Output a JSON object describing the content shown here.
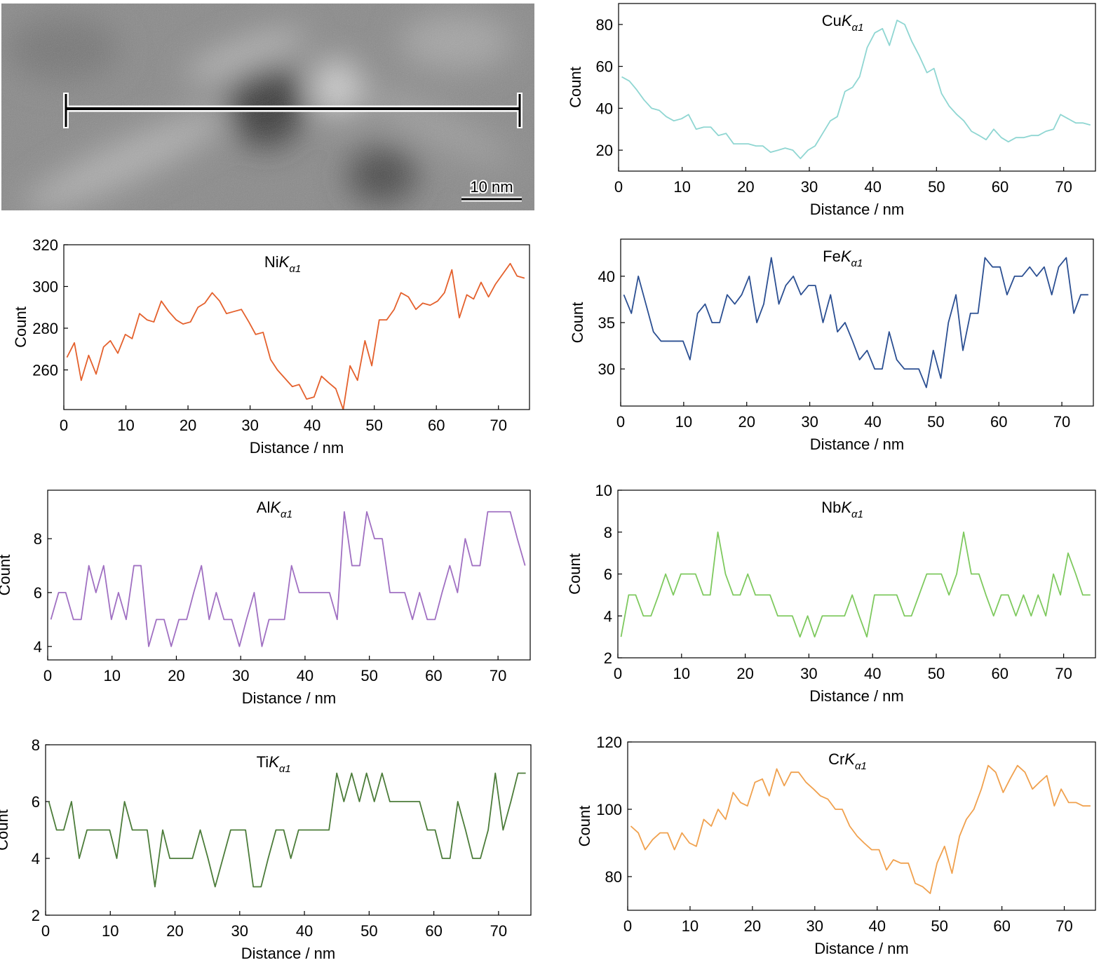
{
  "image": {
    "scale_bar": "10 nm"
  },
  "chart_data": [
    {
      "type": "line",
      "title": "CuKα1",
      "xlabel": "Distance / nm",
      "ylabel": "Count",
      "x": [
        0.5,
        1.7,
        2.8,
        4.0,
        5.2,
        6.4,
        7.5,
        8.7,
        9.9,
        11.0,
        12.2,
        13.4,
        14.5,
        15.7,
        16.9,
        18.1,
        19.2,
        20.4,
        21.6,
        22.7,
        23.9,
        25.1,
        26.2,
        27.4,
        28.6,
        29.8,
        30.9,
        32.1,
        33.3,
        34.4,
        35.6,
        36.8,
        37.9,
        39.1,
        40.3,
        41.5,
        42.6,
        43.8,
        45.0,
        46.1,
        47.3,
        48.5,
        49.6,
        50.8,
        52.0,
        53.2,
        54.3,
        55.5,
        56.7,
        57.8,
        59.0,
        60.2,
        61.3,
        62.5,
        63.7,
        64.9,
        66.0,
        67.2,
        68.4,
        69.5,
        70.7,
        71.9,
        73.0,
        74.2
      ],
      "values": [
        55,
        53,
        49,
        44,
        40,
        39,
        36,
        34,
        35,
        37,
        30,
        31,
        31,
        27,
        28,
        23,
        23,
        23,
        22,
        22,
        19,
        20,
        21,
        20,
        16,
        20,
        22,
        28,
        34,
        36,
        48,
        50,
        55,
        69,
        76,
        78,
        70,
        82,
        80,
        72,
        65,
        57,
        59,
        47,
        41,
        37,
        34,
        29,
        27,
        25,
        30,
        26,
        24,
        26,
        26,
        27,
        27,
        29,
        30,
        37,
        35,
        33,
        33,
        32
      ],
      "color": "#8fd6d2",
      "xlim": [
        0,
        75
      ],
      "ylim": [
        10,
        90
      ],
      "xticks": [
        0,
        10,
        20,
        30,
        40,
        50,
        60,
        70
      ],
      "yticks": [
        20,
        40,
        60,
        80
      ]
    },
    {
      "type": "line",
      "title": "NiKα1",
      "xlabel": "Distance / nm",
      "ylabel": "Count",
      "x": [
        0.5,
        1.7,
        2.8,
        4.0,
        5.2,
        6.4,
        7.5,
        8.7,
        9.9,
        11.0,
        12.2,
        13.4,
        14.5,
        15.7,
        16.9,
        18.1,
        19.2,
        20.4,
        21.6,
        22.7,
        23.9,
        25.1,
        26.2,
        27.4,
        28.6,
        29.8,
        30.9,
        32.1,
        33.3,
        34.4,
        35.6,
        36.8,
        37.9,
        39.1,
        40.3,
        41.5,
        42.6,
        43.8,
        45.0,
        46.1,
        47.3,
        48.5,
        49.6,
        50.8,
        52.0,
        53.2,
        54.3,
        55.5,
        56.7,
        57.8,
        59.0,
        60.2,
        61.3,
        62.5,
        63.7,
        64.9,
        66.0,
        67.2,
        68.4,
        69.5,
        70.7,
        71.9,
        73.0,
        74.2
      ],
      "values": [
        266,
        273,
        255,
        267,
        258,
        271,
        274,
        268,
        277,
        275,
        287,
        284,
        283,
        293,
        288,
        284,
        282,
        283,
        290,
        292,
        297,
        293,
        287,
        288,
        289,
        283,
        277,
        278,
        265,
        260,
        256,
        252,
        253,
        246,
        247,
        257,
        254,
        251,
        241,
        262,
        255,
        274,
        262,
        284,
        284,
        289,
        297,
        295,
        289,
        292,
        291,
        293,
        297,
        308,
        285,
        296,
        294,
        302,
        295,
        301,
        306,
        311,
        305,
        304
      ],
      "color": "#e4602c",
      "xlim": [
        0,
        75
      ],
      "ylim": [
        241,
        320
      ],
      "xticks": [
        0,
        10,
        20,
        30,
        40,
        50,
        60,
        70
      ],
      "yticks": [
        260,
        280,
        300,
        320
      ]
    },
    {
      "type": "line",
      "title": "FeKα1",
      "xlabel": "Distance / nm",
      "ylabel": "Count",
      "x": [
        0.5,
        1.7,
        2.8,
        4.0,
        5.2,
        6.4,
        7.5,
        8.7,
        9.9,
        11.0,
        12.2,
        13.4,
        14.5,
        15.7,
        16.9,
        18.1,
        19.2,
        20.4,
        21.6,
        22.7,
        23.9,
        25.1,
        26.2,
        27.4,
        28.6,
        29.8,
        30.9,
        32.1,
        33.3,
        34.4,
        35.6,
        36.8,
        37.9,
        39.1,
        40.3,
        41.5,
        42.6,
        43.8,
        45.0,
        46.1,
        47.3,
        48.5,
        49.6,
        50.8,
        52.0,
        53.2,
        54.3,
        55.5,
        56.7,
        57.8,
        59.0,
        60.2,
        61.3,
        62.5,
        63.7,
        64.9,
        66.0,
        67.2,
        68.4,
        69.5,
        70.7,
        71.9,
        73.0,
        74.2
      ],
      "values": [
        38,
        36,
        40,
        37,
        34,
        33,
        33,
        33,
        33,
        31,
        36,
        37,
        35,
        35,
        38,
        37,
        38,
        40,
        35,
        37,
        42,
        37,
        39,
        40,
        38,
        39,
        39,
        35,
        38,
        34,
        35,
        33,
        31,
        32,
        30,
        30,
        34,
        31,
        30,
        30,
        30,
        28,
        32,
        29,
        35,
        38,
        32,
        36,
        36,
        42,
        41,
        41,
        38,
        40,
        40,
        41,
        40,
        41,
        38,
        41,
        42,
        36,
        38,
        38
      ],
      "color": "#2b4f92",
      "xlim": [
        0,
        75
      ],
      "ylim": [
        26,
        44
      ],
      "xticks": [
        0,
        10,
        20,
        30,
        40,
        50,
        60,
        70
      ],
      "yticks": [
        30,
        35,
        40
      ]
    },
    {
      "type": "line",
      "title": "AlKα1",
      "xlabel": "Distance / nm",
      "ylabel": "Count",
      "x": [
        0.5,
        1.7,
        2.8,
        4.0,
        5.2,
        6.4,
        7.5,
        8.7,
        9.9,
        11.0,
        12.2,
        13.4,
        14.5,
        15.7,
        16.9,
        18.1,
        19.2,
        20.4,
        21.6,
        22.7,
        23.9,
        25.1,
        26.2,
        27.4,
        28.6,
        29.8,
        30.9,
        32.1,
        33.3,
        34.4,
        35.6,
        36.8,
        37.9,
        39.1,
        40.3,
        41.5,
        42.6,
        43.8,
        45.0,
        46.1,
        47.3,
        48.5,
        49.6,
        50.8,
        52.0,
        53.2,
        54.3,
        55.5,
        56.7,
        57.8,
        59.0,
        60.2,
        61.3,
        62.5,
        63.7,
        64.9,
        66.0,
        67.2,
        68.4,
        69.5,
        70.7,
        71.9,
        73.0,
        74.2
      ],
      "values": [
        5,
        6,
        6,
        5,
        5,
        7,
        6,
        7,
        5,
        6,
        5,
        7,
        7,
        4,
        5,
        5,
        4,
        5,
        5,
        6,
        7,
        5,
        6,
        5,
        5,
        4,
        5,
        6,
        4,
        5,
        5,
        5,
        7,
        6,
        6,
        6,
        6,
        6,
        5,
        9,
        7,
        7,
        9,
        8,
        8,
        6,
        6,
        6,
        5,
        6,
        5,
        5,
        6,
        7,
        6,
        8,
        7,
        7,
        9,
        9,
        9,
        9,
        8,
        7
      ],
      "color": "#a070c2",
      "xlim": [
        0,
        75
      ],
      "ylim": [
        3.5,
        9.8
      ],
      "xticks": [
        0,
        10,
        20,
        30,
        40,
        50,
        60,
        70
      ],
      "yticks": [
        4,
        6,
        8
      ]
    },
    {
      "type": "line",
      "title": "NbKα1",
      "xlabel": "Distance / nm",
      "ylabel": "Count",
      "x": [
        0.5,
        1.7,
        2.8,
        4.0,
        5.2,
        6.4,
        7.5,
        8.7,
        9.9,
        11.0,
        12.2,
        13.4,
        14.5,
        15.7,
        16.9,
        18.1,
        19.2,
        20.4,
        21.6,
        22.7,
        23.9,
        25.1,
        26.2,
        27.4,
        28.6,
        29.8,
        30.9,
        32.1,
        33.3,
        34.4,
        35.6,
        36.8,
        37.9,
        39.1,
        40.3,
        41.5,
        42.6,
        43.8,
        45.0,
        46.1,
        47.3,
        48.5,
        49.6,
        50.8,
        52.0,
        53.2,
        54.3,
        55.5,
        56.7,
        57.8,
        59.0,
        60.2,
        61.3,
        62.5,
        63.7,
        64.9,
        66.0,
        67.2,
        68.4,
        69.5,
        70.7,
        71.9,
        73.0,
        74.2
      ],
      "values": [
        3,
        5,
        5,
        4,
        4,
        5,
        6,
        5,
        6,
        6,
        6,
        5,
        5,
        8,
        6,
        5,
        5,
        6,
        5,
        5,
        5,
        4,
        4,
        4,
        3,
        4,
        3,
        4,
        4,
        4,
        4,
        5,
        4,
        3,
        5,
        5,
        5,
        5,
        4,
        4,
        5,
        6,
        6,
        6,
        5,
        6,
        8,
        6,
        6,
        5,
        4,
        5,
        5,
        4,
        5,
        4,
        5,
        4,
        6,
        5,
        7,
        6,
        5,
        5
      ],
      "color": "#7ec95e",
      "xlim": [
        0,
        75
      ],
      "ylim": [
        2,
        10
      ],
      "xticks": [
        0,
        10,
        20,
        30,
        40,
        50,
        60,
        70
      ],
      "yticks": [
        2,
        4,
        6,
        8,
        10
      ]
    },
    {
      "type": "line",
      "title": "TiKα1",
      "xlabel": "Distance / nm",
      "ylabel": "Count",
      "x": [
        0.5,
        1.7,
        2.8,
        4.0,
        5.2,
        6.4,
        7.5,
        8.7,
        9.9,
        11.0,
        12.2,
        13.4,
        14.5,
        15.7,
        16.9,
        18.1,
        19.2,
        20.4,
        21.6,
        22.7,
        23.9,
        25.1,
        26.2,
        27.4,
        28.6,
        29.8,
        30.9,
        32.1,
        33.3,
        34.4,
        35.6,
        36.8,
        37.9,
        39.1,
        40.3,
        41.5,
        42.6,
        43.8,
        45.0,
        46.1,
        47.3,
        48.5,
        49.6,
        50.8,
        52.0,
        53.2,
        54.3,
        55.5,
        56.7,
        57.8,
        59.0,
        60.2,
        61.3,
        62.5,
        63.7,
        64.9,
        66.0,
        67.2,
        68.4,
        69.5,
        70.7,
        71.9,
        73.0,
        74.2
      ],
      "values": [
        6,
        5,
        5,
        6,
        4,
        5,
        5,
        5,
        5,
        4,
        6,
        5,
        5,
        5,
        3,
        5,
        4,
        4,
        4,
        4,
        5,
        4,
        3,
        4,
        5,
        5,
        5,
        3,
        3,
        4,
        5,
        5,
        4,
        5,
        5,
        5,
        5,
        5,
        7,
        6,
        7,
        6,
        7,
        6,
        7,
        6,
        6,
        6,
        6,
        6,
        5,
        5,
        4,
        4,
        6,
        5,
        4,
        4,
        5,
        7,
        5,
        6,
        7,
        7
      ],
      "color": "#4c7c3a",
      "xlim": [
        0,
        75
      ],
      "ylim": [
        2,
        8
      ],
      "xticks": [
        0,
        10,
        20,
        30,
        40,
        50,
        60,
        70
      ],
      "yticks": [
        2,
        4,
        6,
        8
      ]
    },
    {
      "type": "line",
      "title": "CrKα1",
      "xlabel": "Distance / nm",
      "ylabel": "Count",
      "x": [
        0.5,
        1.7,
        2.8,
        4.0,
        5.2,
        6.4,
        7.5,
        8.7,
        9.9,
        11.0,
        12.2,
        13.4,
        14.5,
        15.7,
        16.9,
        18.1,
        19.2,
        20.4,
        21.6,
        22.7,
        23.9,
        25.1,
        26.2,
        27.4,
        28.6,
        29.8,
        30.9,
        32.1,
        33.3,
        34.4,
        35.6,
        36.8,
        37.9,
        39.1,
        40.3,
        41.5,
        42.6,
        43.8,
        45.0,
        46.1,
        47.3,
        48.5,
        49.6,
        50.8,
        52.0,
        53.2,
        54.3,
        55.5,
        56.7,
        57.8,
        59.0,
        60.2,
        61.3,
        62.5,
        63.7,
        64.9,
        66.0,
        67.2,
        68.4,
        69.5,
        70.7,
        71.9,
        73.0,
        74.2
      ],
      "values": [
        95,
        93,
        88,
        91,
        93,
        93,
        88,
        93,
        90,
        89,
        97,
        95,
        100,
        97,
        105,
        102,
        101,
        108,
        109,
        104,
        112,
        107,
        111,
        111,
        108,
        106,
        104,
        103,
        100,
        100,
        95,
        92,
        90,
        88,
        88,
        82,
        85,
        84,
        84,
        78,
        77,
        75,
        84,
        89,
        81,
        92,
        97,
        100,
        106,
        113,
        111,
        105,
        109,
        113,
        111,
        106,
        108,
        110,
        101,
        106,
        102,
        102,
        101,
        101
      ],
      "color": "#f0a14e",
      "xlim": [
        0,
        75
      ],
      "ylim": [
        70,
        120
      ],
      "xticks": [
        0,
        10,
        20,
        30,
        40,
        50,
        60,
        70
      ],
      "yticks": [
        80,
        100,
        120
      ]
    }
  ]
}
